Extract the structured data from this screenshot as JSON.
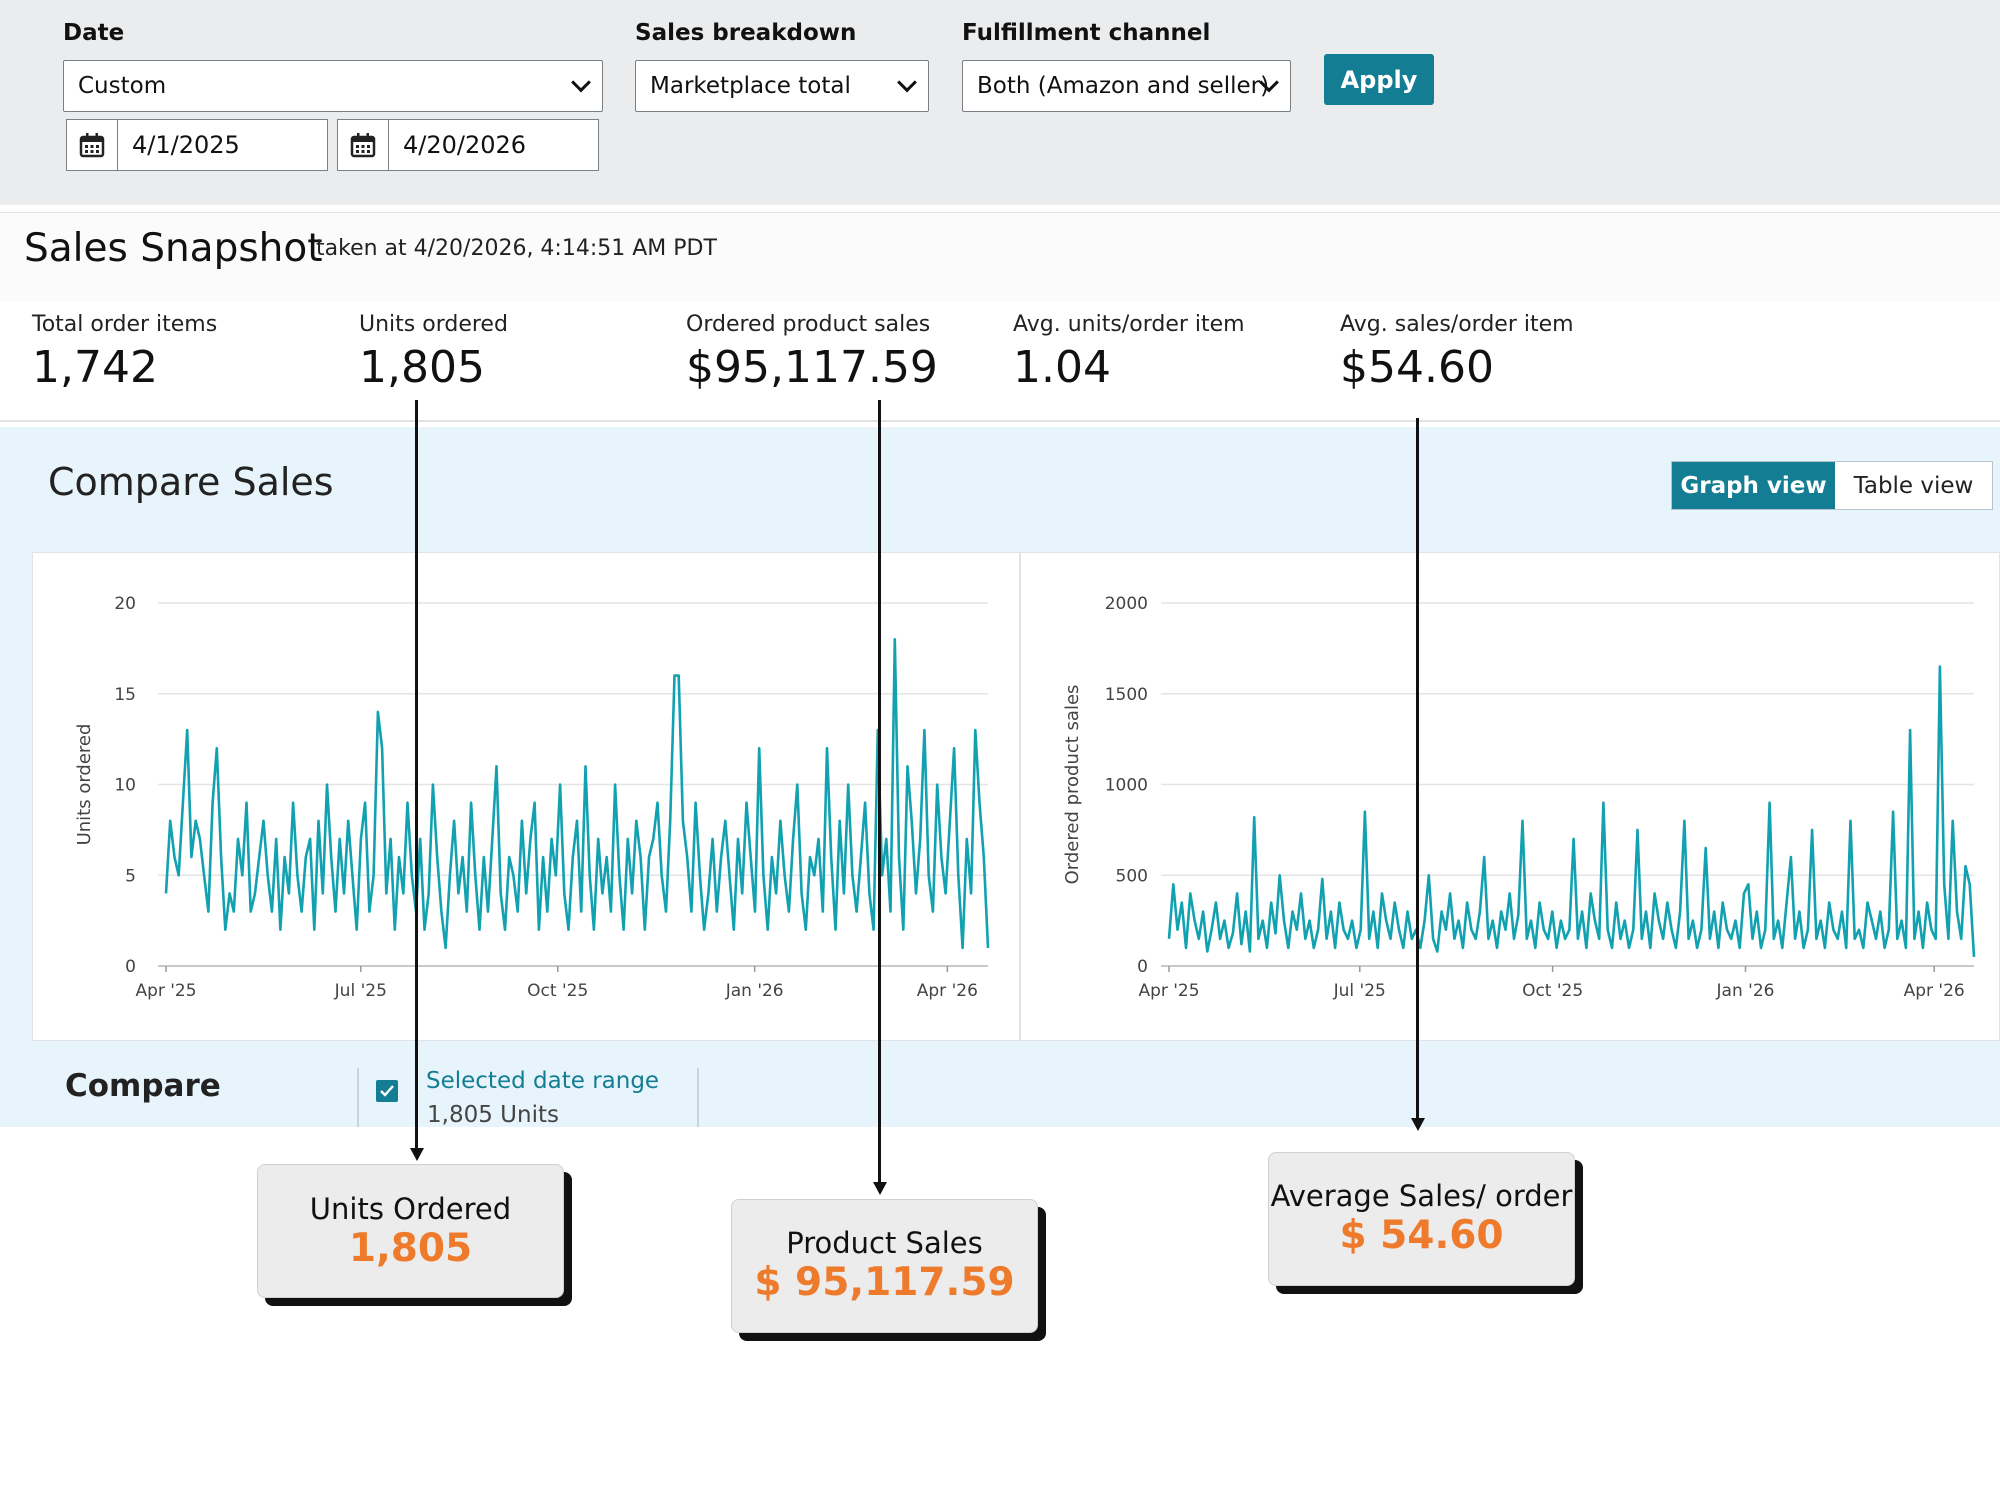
{
  "filters": {
    "date": {
      "label": "Date",
      "selected": "Custom",
      "start": "4/1/2025",
      "end": "4/20/2026"
    },
    "sales_breakdown": {
      "label": "Sales breakdown",
      "selected": "Marketplace total"
    },
    "fulfillment": {
      "label": "Fulfillment channel",
      "selected": "Both (Amazon and seller)"
    },
    "apply_label": "Apply"
  },
  "snapshot": {
    "title": "Sales Snapshot",
    "taken_at": "taken at 4/20/2026, 4:14:51 AM PDT",
    "metrics": [
      {
        "label": "Total order items",
        "value": "1,742"
      },
      {
        "label": "Units ordered",
        "value": "1,805"
      },
      {
        "label": "Ordered product sales",
        "value": "$95,117.59"
      },
      {
        "label": "Avg. units/order item",
        "value": "1.04"
      },
      {
        "label": "Avg. sales/order item",
        "value": "$54.60"
      }
    ]
  },
  "compare_sales": {
    "title": "Compare Sales",
    "graph_view_label": "Graph view",
    "table_view_label": "Table view",
    "compare_label": "Compare",
    "selected_range_label": "Selected date range",
    "selected_range_units": "1,805 Units"
  },
  "colors": {
    "accent": "#137e93",
    "line": "#12a1b0",
    "callout_value": "#ee7a2c"
  },
  "chart_data": [
    {
      "type": "line",
      "title": "",
      "xlabel": "",
      "ylabel": "Units ordered",
      "ylim": [
        0,
        20
      ],
      "yticks": [
        "0",
        "5",
        "10",
        "15",
        "20"
      ],
      "xticks": [
        "Apr '25",
        "Jul '25",
        "Oct '25",
        "Jan '26",
        "Apr '26"
      ],
      "x_start": "2025-04-01",
      "x_end": "2026-04-20",
      "grid": true,
      "series": [
        {
          "values": [
            4,
            8,
            6,
            5,
            9,
            13,
            6,
            8,
            7,
            5,
            3,
            9,
            12,
            6,
            2,
            4,
            3,
            7,
            5,
            9,
            3,
            4,
            6,
            8,
            5,
            3,
            7,
            2,
            6,
            4,
            9,
            5,
            3,
            6,
            7,
            2,
            8,
            4,
            10,
            6,
            3,
            7,
            4,
            8,
            5,
            2,
            7,
            9,
            3,
            5,
            14,
            12,
            4,
            7,
            2,
            6,
            4,
            9,
            5,
            3,
            7,
            2,
            4,
            10,
            6,
            3,
            1,
            5,
            8,
            4,
            6,
            3,
            9,
            5,
            2,
            6,
            3,
            7,
            11,
            4,
            2,
            6,
            5,
            3,
            8,
            4,
            7,
            9,
            2,
            6,
            3,
            7,
            5,
            10,
            4,
            2,
            6,
            8,
            3,
            11,
            5,
            2,
            7,
            4,
            6,
            3,
            10,
            5,
            2,
            7,
            4,
            8,
            6,
            2,
            6,
            7,
            9,
            5,
            3,
            8,
            16,
            16,
            8,
            6,
            3,
            9,
            5,
            2,
            4,
            7,
            3,
            6,
            8,
            5,
            2,
            7,
            4,
            9,
            6,
            3,
            12,
            5,
            2,
            6,
            4,
            8,
            5,
            3,
            7,
            10,
            4,
            2,
            6,
            5,
            7,
            3,
            12,
            6,
            2,
            8,
            4,
            10,
            5,
            3,
            6,
            9,
            4,
            2,
            13,
            5,
            7,
            3,
            18,
            6,
            2,
            11,
            8,
            4,
            7,
            13,
            5,
            3,
            10,
            6,
            4,
            8,
            12,
            5,
            1,
            7,
            4,
            13,
            9,
            6,
            1
          ]
        }
      ]
    },
    {
      "type": "line",
      "title": "",
      "xlabel": "",
      "ylabel": "Ordered product sales",
      "ylim": [
        0,
        2000
      ],
      "yticks": [
        "0",
        "500",
        "1000",
        "1500",
        "2000"
      ],
      "xticks": [
        "Apr '25",
        "Jul '25",
        "Oct '25",
        "Jan '26",
        "Apr '26"
      ],
      "x_start": "2025-04-01",
      "x_end": "2026-04-20",
      "grid": true,
      "series": [
        {
          "values": [
            150,
            450,
            200,
            350,
            100,
            400,
            250,
            150,
            300,
            80,
            200,
            350,
            150,
            250,
            100,
            180,
            400,
            120,
            300,
            80,
            820,
            150,
            250,
            100,
            350,
            180,
            500,
            250,
            100,
            300,
            200,
            400,
            150,
            250,
            100,
            200,
            480,
            150,
            300,
            100,
            350,
            200,
            150,
            250,
            100,
            200,
            850,
            150,
            300,
            100,
            400,
            250,
            150,
            350,
            200,
            100,
            300,
            150,
            200,
            100,
            250,
            500,
            150,
            80,
            300,
            200,
            400,
            150,
            250,
            100,
            350,
            200,
            150,
            300,
            600,
            150,
            250,
            100,
            300,
            200,
            400,
            150,
            280,
            800,
            150,
            250,
            100,
            350,
            200,
            150,
            300,
            100,
            250,
            150,
            200,
            700,
            150,
            300,
            100,
            400,
            250,
            150,
            900,
            200,
            100,
            350,
            150,
            250,
            100,
            200,
            750,
            150,
            300,
            100,
            400,
            250,
            150,
            350,
            200,
            100,
            300,
            800,
            150,
            250,
            100,
            200,
            650,
            150,
            300,
            100,
            350,
            200,
            150,
            250,
            100,
            400,
            450,
            150,
            300,
            100,
            200,
            900,
            150,
            250,
            100,
            350,
            600,
            150,
            300,
            100,
            200,
            750,
            150,
            250,
            100,
            350,
            200,
            150,
            300,
            100,
            800,
            150,
            200,
            100,
            350,
            250,
            150,
            300,
            100,
            200,
            850,
            150,
            250,
            100,
            1300,
            150,
            300,
            100,
            350,
            200,
            150,
            1650,
            450,
            150,
            800,
            300,
            150,
            550,
            450,
            50
          ]
        }
      ]
    }
  ],
  "callouts": [
    {
      "title": "Units Ordered",
      "value": "1,805"
    },
    {
      "title": "Product Sales",
      "value": "$ 95,117.59"
    },
    {
      "title": "Average Sales/ order",
      "value": "$ 54.60"
    }
  ]
}
